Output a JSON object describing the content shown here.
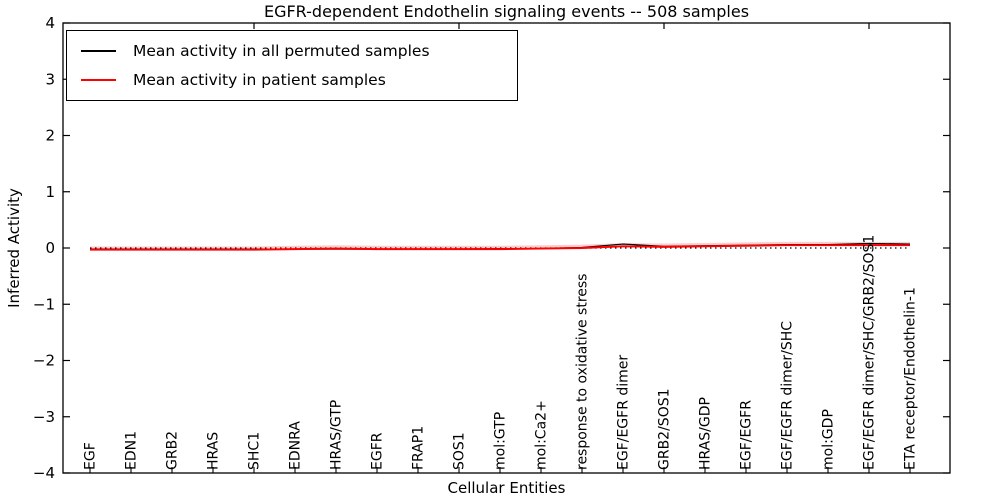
{
  "axes": {
    "ylabel": "Inferred Activity",
    "xlabel": "Cellular Entities",
    "ytick_values": [
      4,
      3,
      2,
      1,
      0,
      -1,
      -2,
      -3,
      -4
    ],
    "ytick_labels": [
      "4",
      "3",
      "2",
      "1",
      "0",
      "−1",
      "−2",
      "−3",
      "−4"
    ]
  },
  "legend": {
    "items": [
      {
        "label": "Mean activity in all permuted samples",
        "color": "#000000"
      },
      {
        "label": "Mean activity in patient samples",
        "color": "#ff0000"
      }
    ]
  },
  "chart_data": {
    "type": "line",
    "title": "EGFR-dependent Endothelin signaling events -- 508 samples",
    "xlabel": "Cellular Entities",
    "ylabel": "Inferred Activity",
    "ylim": [
      -4,
      4
    ],
    "grid": false,
    "legend_position": "upper left",
    "xticks_major_values": [
      5,
      10,
      15,
      20
    ],
    "zero_reference_line": {
      "style": "dotted",
      "color": "#000000",
      "y": 0
    },
    "categories": [
      "EGF",
      "EDN1",
      "GRB2",
      "HRAS",
      "SHC1",
      "EDNRA",
      "HRAS/GTP",
      "EGFR",
      "FRAP1",
      "SOS1",
      "mol:GTP",
      "mol:Ca2+",
      "response to oxidative stress",
      "EGF/EGFR dimer",
      "GRB2/SOS1",
      "HRAS/GDP",
      "EGF/EGFR",
      "EGF/EGFR dimer/SHC",
      "mol:GDP",
      "EGF/EGFR dimer/SHC/GRB2/SOS1",
      "ETA receptor/Endothelin-1"
    ],
    "series": [
      {
        "name": "Mean activity in all permuted samples",
        "color": "#000000",
        "values": [
          -0.02,
          -0.02,
          -0.02,
          -0.02,
          -0.02,
          -0.02,
          -0.02,
          -0.02,
          -0.02,
          -0.02,
          -0.01,
          -0.01,
          0.01,
          0.07,
          0.03,
          0.04,
          0.05,
          0.06,
          0.06,
          0.08,
          0.07
        ]
      },
      {
        "name": "Mean activity in patient samples",
        "color": "#ff0000",
        "values": [
          -0.03,
          -0.03,
          -0.03,
          -0.03,
          -0.03,
          -0.02,
          -0.01,
          -0.02,
          -0.02,
          -0.02,
          -0.02,
          -0.01,
          0.0,
          0.03,
          0.02,
          0.03,
          0.04,
          0.05,
          0.05,
          0.05,
          0.05
        ]
      }
    ]
  }
}
